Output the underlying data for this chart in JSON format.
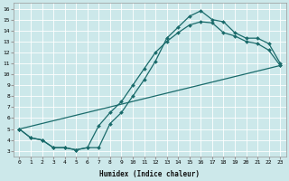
{
  "xlabel": "Humidex (Indice chaleur)",
  "bg_color": "#cce8ea",
  "line_color": "#1a6b6b",
  "grid_color": "#ffffff",
  "xlim": [
    -0.5,
    23.5
  ],
  "ylim": [
    2.5,
    16.5
  ],
  "xticks": [
    0,
    1,
    2,
    3,
    4,
    5,
    6,
    7,
    8,
    9,
    10,
    11,
    12,
    13,
    14,
    15,
    16,
    17,
    18,
    19,
    20,
    21,
    22,
    23
  ],
  "yticks": [
    3,
    4,
    5,
    6,
    7,
    8,
    9,
    10,
    11,
    12,
    13,
    14,
    15,
    16
  ],
  "line1_x": [
    0,
    1,
    2,
    3,
    4,
    5,
    6,
    7,
    8,
    9,
    10,
    11,
    12,
    13,
    14,
    15,
    16,
    17,
    18,
    19,
    20,
    21,
    22,
    23
  ],
  "line1_y": [
    5.0,
    4.2,
    4.0,
    3.3,
    3.3,
    3.1,
    3.3,
    3.3,
    5.5,
    6.5,
    8.0,
    9.5,
    11.2,
    13.3,
    14.3,
    15.3,
    15.8,
    15.0,
    14.8,
    13.8,
    13.3,
    13.3,
    12.8,
    11.0
  ],
  "line2_x": [
    0,
    1,
    2,
    3,
    4,
    5,
    6,
    7,
    8,
    9,
    10,
    11,
    12,
    13,
    14,
    15,
    16,
    17,
    18,
    19,
    20,
    21,
    22,
    23
  ],
  "line2_y": [
    5.0,
    4.2,
    4.0,
    3.3,
    3.3,
    3.1,
    3.3,
    5.3,
    6.5,
    7.5,
    9.0,
    10.5,
    12.0,
    13.0,
    13.8,
    14.5,
    14.8,
    14.7,
    13.8,
    13.5,
    13.0,
    12.8,
    12.2,
    10.8
  ],
  "line3_x": [
    0,
    23
  ],
  "line3_y": [
    5.0,
    10.8
  ],
  "marker": "D",
  "markersize": 2.0,
  "linewidth": 0.9,
  "xlabel_fontsize": 5.5,
  "tick_fontsize": 4.5
}
